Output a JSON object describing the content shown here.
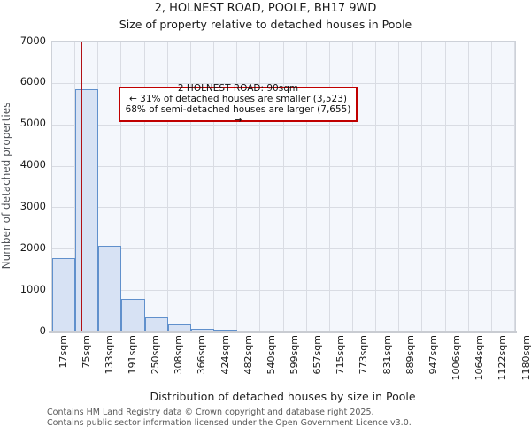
{
  "chart_data": {
    "type": "bar",
    "title": "2, HOLNEST ROAD, POOLE, BH17 9WD",
    "subtitle": "Size of property relative to detached houses in Poole",
    "xlabel": "Distribution of detached houses by size in Poole",
    "ylabel": "Number of detached properties",
    "x_domain": [
      17,
      1180
    ],
    "x_tick_labels": [
      "17sqm",
      "75sqm",
      "133sqm",
      "191sqm",
      "250sqm",
      "308sqm",
      "366sqm",
      "424sqm",
      "482sqm",
      "540sqm",
      "599sqm",
      "657sqm",
      "715sqm",
      "773sqm",
      "831sqm",
      "889sqm",
      "947sqm",
      "1006sqm",
      "1064sqm",
      "1122sqm",
      "1180sqm"
    ],
    "bin_width_sqm": 58.15,
    "values": [
      1770,
      5840,
      2070,
      780,
      340,
      175,
      70,
      45,
      30,
      20,
      15,
      15,
      0,
      0,
      0,
      0,
      0,
      0,
      0,
      0
    ],
    "ylim": [
      0,
      7000
    ],
    "yticks": [
      0,
      1000,
      2000,
      3000,
      4000,
      5000,
      6000,
      7000
    ],
    "grid": true,
    "legend": "none",
    "marker": {
      "value_sqm": 90,
      "color": "#b11116"
    },
    "annotation": {
      "line1": "2 HOLNEST ROAD: 90sqm",
      "line2": "← 31% of detached houses are smaller (3,523)",
      "line3": "68% of semi-detached houses are larger (7,655) →"
    },
    "colors": {
      "bar_fill": "#d7e2f4",
      "bar_border": "#6090cc",
      "plot_bg": "#f4f7fc",
      "gridline": "#d9dce3",
      "annotation_border": "#c00000",
      "marker_line": "#b11116"
    }
  },
  "footer": {
    "line1": "Contains HM Land Registry data © Crown copyright and database right 2025.",
    "line2": "Contains public sector information licensed under the Open Government Licence v3.0."
  }
}
